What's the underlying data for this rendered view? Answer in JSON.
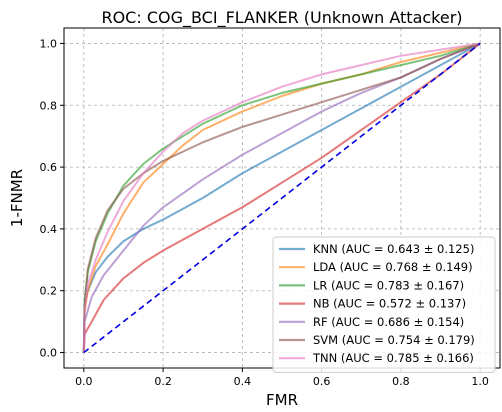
{
  "chart_data": {
    "type": "line",
    "title": "ROC: COG_BCI_FLANKER (Unknown Attacker)",
    "xlabel": "FMR",
    "ylabel": "1-FNMR",
    "xlim": [
      -0.05,
      1.05
    ],
    "ylim": [
      -0.05,
      1.05
    ],
    "xticks": [
      "0.0",
      "0.2",
      "0.4",
      "0.6",
      "0.8",
      "1.0"
    ],
    "yticks": [
      "0.0",
      "0.2",
      "0.4",
      "0.6",
      "0.8",
      "1.0"
    ],
    "grid": true,
    "legend_position": "lower-right",
    "colors": {
      "KNN": "#1f77b4",
      "LDA": "#ff7f0e",
      "LR": "#2ca02c",
      "NB": "#d62728",
      "RF": "#9467bd",
      "SVM": "#8c564b",
      "TNN": "#e377c2",
      "chance": "#0000dd"
    },
    "series": [
      {
        "name": "KNN (AUC = 0.643 ± 0.125)",
        "key": "KNN",
        "x": [
          0,
          0.002,
          0.01,
          0.03,
          0.06,
          0.1,
          0.15,
          0.2,
          0.3,
          0.4,
          0.5,
          0.6,
          0.7,
          0.8,
          0.9,
          1.0
        ],
        "y": [
          0,
          0.16,
          0.2,
          0.26,
          0.31,
          0.36,
          0.4,
          0.43,
          0.5,
          0.58,
          0.65,
          0.72,
          0.79,
          0.86,
          0.93,
          1.0
        ]
      },
      {
        "name": "LDA (AUC = 0.768 ± 0.149)",
        "key": "LDA",
        "x": [
          0,
          0.002,
          0.01,
          0.03,
          0.06,
          0.1,
          0.15,
          0.2,
          0.25,
          0.3,
          0.4,
          0.5,
          0.6,
          0.7,
          0.8,
          0.9,
          1.0
        ],
        "y": [
          0,
          0.13,
          0.2,
          0.28,
          0.35,
          0.45,
          0.55,
          0.61,
          0.67,
          0.72,
          0.78,
          0.83,
          0.87,
          0.9,
          0.94,
          0.97,
          1.0
        ]
      },
      {
        "name": "LR (AUC = 0.783 ± 0.167)",
        "key": "LR",
        "x": [
          0,
          0.002,
          0.01,
          0.03,
          0.06,
          0.1,
          0.15,
          0.2,
          0.25,
          0.3,
          0.4,
          0.5,
          0.6,
          0.7,
          0.8,
          0.9,
          1.0
        ],
        "y": [
          0,
          0.17,
          0.26,
          0.36,
          0.45,
          0.54,
          0.61,
          0.66,
          0.7,
          0.74,
          0.8,
          0.84,
          0.87,
          0.9,
          0.93,
          0.96,
          1.0
        ]
      },
      {
        "name": "NB (AUC = 0.572 ± 0.137)",
        "key": "NB",
        "x": [
          0,
          0.002,
          0.02,
          0.05,
          0.1,
          0.15,
          0.2,
          0.3,
          0.4,
          0.5,
          0.6,
          0.7,
          0.8,
          0.9,
          1.0
        ],
        "y": [
          0,
          0.06,
          0.1,
          0.17,
          0.24,
          0.29,
          0.33,
          0.4,
          0.47,
          0.55,
          0.63,
          0.72,
          0.81,
          0.9,
          1.0
        ]
      },
      {
        "name": "RF (AUC = 0.686 ± 0.154)",
        "key": "RF",
        "x": [
          0,
          0.002,
          0.02,
          0.05,
          0.1,
          0.15,
          0.2,
          0.3,
          0.4,
          0.5,
          0.6,
          0.7,
          0.8,
          0.9,
          1.0
        ],
        "y": [
          0,
          0.1,
          0.18,
          0.25,
          0.33,
          0.41,
          0.47,
          0.56,
          0.64,
          0.71,
          0.78,
          0.84,
          0.89,
          0.95,
          1.0
        ]
      },
      {
        "name": "SVM (AUC = 0.754 ± 0.179)",
        "key": "SVM",
        "x": [
          0,
          0.002,
          0.01,
          0.03,
          0.06,
          0.1,
          0.15,
          0.2,
          0.3,
          0.4,
          0.5,
          0.6,
          0.7,
          0.8,
          0.9,
          1.0
        ],
        "y": [
          0,
          0.15,
          0.27,
          0.37,
          0.46,
          0.53,
          0.58,
          0.62,
          0.68,
          0.73,
          0.77,
          0.81,
          0.85,
          0.89,
          0.95,
          1.0
        ]
      },
      {
        "name": "TNN (AUC = 0.785 ± 0.166)",
        "key": "TNN",
        "x": [
          0,
          0.002,
          0.01,
          0.03,
          0.06,
          0.1,
          0.15,
          0.2,
          0.25,
          0.3,
          0.4,
          0.5,
          0.6,
          0.7,
          0.8,
          0.9,
          1.0
        ],
        "y": [
          0,
          0.14,
          0.22,
          0.3,
          0.39,
          0.49,
          0.58,
          0.65,
          0.71,
          0.75,
          0.81,
          0.86,
          0.9,
          0.93,
          0.96,
          0.98,
          1.0
        ]
      }
    ],
    "reference_line": {
      "key": "chance",
      "x": [
        0,
        1
      ],
      "y": [
        0,
        1
      ],
      "style": "dashed"
    }
  }
}
